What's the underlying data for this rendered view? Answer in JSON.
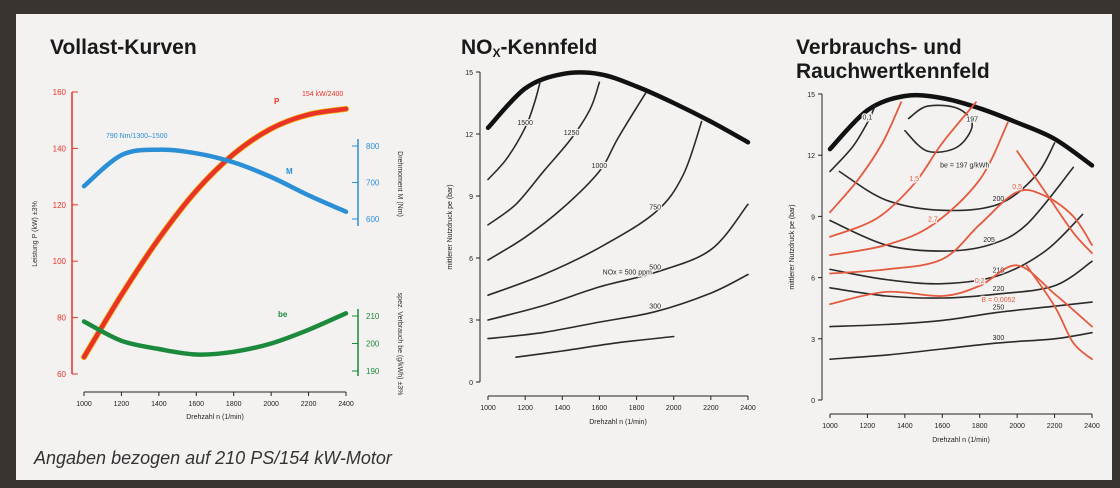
{
  "titles": {
    "vollast": "Vollast-Kurven",
    "nox_main": "NO",
    "nox_sub": "X",
    "nox_rest": "-Kennfeld",
    "verbrauch_l1": "Verbrauchs- und",
    "verbrauch_l2": "Rauchwertkennfeld"
  },
  "caption": "Angaben bezogen auf 210 PS/154 kW-Motor",
  "colors": {
    "power": "#e8332a",
    "torque": "#2a8fd6",
    "consumption": "#1b8a3c",
    "smoke": "#e35a3e",
    "iso": "#2a2a2a",
    "limit": "#111111"
  },
  "chart_data": [
    {
      "type": "line",
      "title": "Vollast-Kurven",
      "xlabel": "Drehzahl n (1/min)",
      "xlim": [
        1000,
        2400
      ],
      "x_ticks": [
        1000,
        1200,
        1400,
        1600,
        1800,
        2000,
        2200,
        2400
      ],
      "ylabel_left": "Leistung P (kW) ±3%",
      "ylim_left": [
        60,
        160
      ],
      "y_ticks_left": [
        60,
        80,
        100,
        120,
        140,
        160
      ],
      "ylabel_right_top": "Drehmoment M (Nm)",
      "y_ticks_right_top": [
        600,
        700,
        800
      ],
      "ylabel_right_bottom": "spez. Verbrauch be (g/kWh) ±3%",
      "y_ticks_right_bottom": [
        190,
        200,
        210
      ],
      "annotations": [
        "154 kW/2400",
        "790 Nm/1300–1500"
      ],
      "series": [
        {
          "name": "P",
          "axis": "left",
          "x": [
            1000,
            1200,
            1400,
            1600,
            1800,
            2000,
            2200,
            2400
          ],
          "values": [
            66,
            88,
            108,
            125,
            138,
            147,
            152,
            154
          ]
        },
        {
          "name": "M",
          "axis": "right_top",
          "x": [
            1000,
            1200,
            1400,
            1600,
            1800,
            2000,
            2200,
            2400
          ],
          "values": [
            690,
            775,
            790,
            780,
            755,
            715,
            665,
            620
          ]
        },
        {
          "name": "be",
          "axis": "right_bottom",
          "x": [
            1000,
            1200,
            1400,
            1600,
            1800,
            2000,
            2200,
            2400
          ],
          "values": [
            208,
            201,
            198,
            196,
            197,
            200,
            205,
            211
          ]
        }
      ]
    },
    {
      "type": "line",
      "title": "NOx-Kennfeld",
      "xlabel": "Drehzahl n (1/min)",
      "ylabel": "mittlerer Nutzdruck pe (bar)",
      "xlim": [
        1000,
        2400
      ],
      "ylim": [
        0,
        15
      ],
      "x_ticks": [
        1000,
        1200,
        1400,
        1600,
        1800,
        2000,
        2200,
        2400
      ],
      "y_ticks": [
        0,
        3,
        6,
        9,
        12,
        15
      ],
      "contour_unit": "NOx = … ppm",
      "series": [
        {
          "name": "Volllast",
          "x": [
            1000,
            1200,
            1400,
            1600,
            1800,
            2000,
            2200,
            2400
          ],
          "values": [
            12.3,
            14.2,
            14.9,
            14.9,
            14.3,
            13.5,
            12.6,
            11.6
          ]
        },
        {
          "label": "1500",
          "x": [
            1000,
            1100,
            1200,
            1250,
            1280
          ],
          "values": [
            9.8,
            10.8,
            12.3,
            13.5,
            14.5
          ]
        },
        {
          "label": "1250",
          "x": [
            1000,
            1150,
            1300,
            1450,
            1550,
            1600
          ],
          "values": [
            7.6,
            8.6,
            10.2,
            11.8,
            13.2,
            14.5
          ]
        },
        {
          "label": "1000",
          "x": [
            1000,
            1200,
            1400,
            1600,
            1700,
            1850
          ],
          "values": [
            5.9,
            7.0,
            8.4,
            10.2,
            11.8,
            14.0
          ]
        },
        {
          "label": "750",
          "x": [
            1000,
            1300,
            1600,
            1900,
            2050,
            2150
          ],
          "values": [
            4.2,
            5.2,
            6.5,
            8.2,
            10.0,
            12.6
          ]
        },
        {
          "label": "500",
          "x": [
            1000,
            1300,
            1600,
            1900,
            2200,
            2400
          ],
          "values": [
            3.0,
            3.7,
            4.6,
            5.3,
            6.4,
            8.6
          ]
        },
        {
          "label": "300",
          "x": [
            1000,
            1300,
            1600,
            1900,
            2200,
            2400
          ],
          "values": [
            2.1,
            2.4,
            2.9,
            3.4,
            4.3,
            5.2
          ]
        },
        {
          "label": "",
          "x": [
            1150,
            1400,
            1700,
            2000
          ],
          "values": [
            1.2,
            1.5,
            1.9,
            2.2
          ]
        }
      ]
    },
    {
      "type": "line",
      "title": "Verbrauchs- und Rauchwertkennfeld",
      "xlabel": "Drehzahl n (1/min)",
      "ylabel": "mittlerer Nutzdruck pe (bar)",
      "xlim": [
        1000,
        2400
      ],
      "ylim": [
        0,
        15
      ],
      "x_ticks": [
        1000,
        1200,
        1400,
        1600,
        1800,
        2000,
        2200,
        2400
      ],
      "y_ticks": [
        0,
        3,
        6,
        9,
        12,
        15
      ],
      "annotations": [
        "be = 197 g/kWh",
        "B = 0,0052"
      ],
      "series": [
        {
          "name": "Volllast",
          "x": [
            1000,
            1200,
            1400,
            1600,
            1800,
            2000,
            2200,
            2400
          ],
          "values": [
            12.3,
            14.2,
            14.9,
            14.8,
            14.3,
            13.6,
            12.8,
            11.5
          ]
        },
        {
          "label": "197",
          "x": [
            1400,
            1520,
            1680,
            1760,
            1680,
            1520,
            1420
          ],
          "values": [
            13.2,
            12.2,
            12.4,
            13.5,
            14.3,
            14.4,
            13.8
          ]
        },
        {
          "label": "200",
          "x": [
            1050,
            1300,
            1600,
            1900,
            2100,
            2200
          ],
          "values": [
            11.2,
            9.8,
            9.3,
            9.6,
            11.0,
            12.6
          ]
        },
        {
          "label": "205",
          "x": [
            1000,
            1300,
            1600,
            1850,
            2050,
            2300
          ],
          "values": [
            8.8,
            7.6,
            7.3,
            7.6,
            8.6,
            11.4
          ]
        },
        {
          "label": "210",
          "x": [
            1000,
            1300,
            1600,
            1900,
            2150,
            2350
          ],
          "values": [
            6.4,
            5.9,
            5.7,
            6.1,
            7.3,
            9.1
          ]
        },
        {
          "label": "220",
          "x": [
            1000,
            1300,
            1600,
            1900,
            2200,
            2400
          ],
          "values": [
            5.5,
            5.1,
            5.0,
            5.2,
            5.6,
            6.8
          ]
        },
        {
          "label": "250",
          "x": [
            1000,
            1300,
            1600,
            1900,
            2200,
            2400
          ],
          "values": [
            3.6,
            3.7,
            3.9,
            4.3,
            4.6,
            4.8
          ]
        },
        {
          "label": "300",
          "x": [
            1000,
            1300,
            1600,
            1900,
            2200,
            2400
          ],
          "values": [
            2.0,
            2.2,
            2.5,
            2.8,
            3.0,
            3.3
          ]
        },
        {
          "label": "0,1",
          "x": [
            1000,
            1120,
            1200,
            1240
          ],
          "values": [
            11.2,
            12.4,
            13.6,
            14.4
          ]
        },
        {
          "label": "",
          "x": [
            1000,
            1150,
            1280,
            1380
          ],
          "values": [
            9.2,
            10.8,
            12.6,
            14.6
          ]
        },
        {
          "label": "1,5",
          "x": [
            1000,
            1250,
            1450,
            1600,
            1780
          ],
          "values": [
            8.0,
            8.9,
            10.6,
            12.6,
            14.6
          ]
        },
        {
          "label": "2,7",
          "x": [
            1000,
            1300,
            1550,
            1800,
            1950
          ],
          "values": [
            7.1,
            7.6,
            8.6,
            10.8,
            13.6
          ]
        },
        {
          "label": "0,5",
          "x": [
            1000,
            1300,
            1600,
            1800,
            2000,
            2150,
            2300,
            2400
          ],
          "values": [
            6.2,
            6.4,
            6.9,
            8.6,
            10.2,
            10.0,
            9.0,
            7.6
          ]
        },
        {
          "label": "0,2",
          "x": [
            1000,
            1300,
            1600,
            1800,
            2000,
            2200,
            2400
          ],
          "values": [
            4.7,
            5.3,
            5.1,
            5.6,
            6.6,
            5.2,
            3.6
          ]
        },
        {
          "label": "",
          "x": [
            2050,
            2200,
            2300,
            2400
          ],
          "values": [
            6.6,
            4.6,
            2.8,
            2.0
          ]
        },
        {
          "label": "",
          "x": [
            2000,
            2150,
            2300,
            2400
          ],
          "values": [
            12.2,
            10.2,
            8.2,
            7.2
          ]
        }
      ]
    }
  ]
}
